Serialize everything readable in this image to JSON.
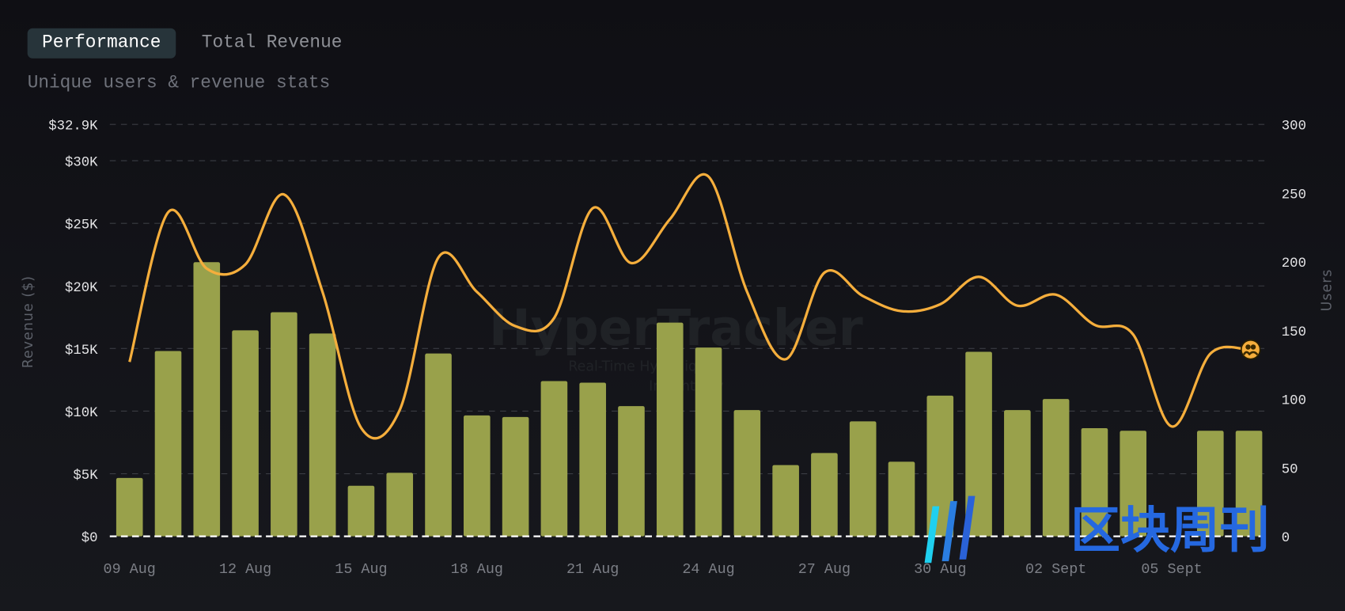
{
  "tabs": [
    {
      "label": "Performance",
      "active": true
    },
    {
      "label": "Total Revenue",
      "active": false
    }
  ],
  "subtitle": "Unique users & revenue stats",
  "watermark": {
    "title": "HyperTracker",
    "line1": "Real-Time Hyperliquid",
    "line2": "Insights by"
  },
  "logo_text": "区块周刊",
  "colors": {
    "bar": "#99a14b",
    "line": "#f5ae3c",
    "grid": "#3a3c43"
  },
  "chart_data": {
    "type": "bar+line",
    "xlabel": "",
    "ylabel": "Revenue ($)",
    "y2label": "Users",
    "ylim": [
      0,
      32900
    ],
    "y2lim": [
      0,
      300
    ],
    "yticks": [
      {
        "v": 0,
        "label": "$0"
      },
      {
        "v": 5000,
        "label": "$5K"
      },
      {
        "v": 10000,
        "label": "$10K"
      },
      {
        "v": 15000,
        "label": "$15K"
      },
      {
        "v": 20000,
        "label": "$20K"
      },
      {
        "v": 25000,
        "label": "$25K"
      },
      {
        "v": 30000,
        "label": "$30K"
      },
      {
        "v": 32900,
        "label": "$32.9K"
      }
    ],
    "y2ticks": [
      {
        "v": 0,
        "label": "0"
      },
      {
        "v": 50,
        "label": "50"
      },
      {
        "v": 100,
        "label": "100"
      },
      {
        "v": 150,
        "label": "150"
      },
      {
        "v": 200,
        "label": "200"
      },
      {
        "v": 250,
        "label": "250"
      },
      {
        "v": 300,
        "label": "300"
      }
    ],
    "grid": true,
    "categories": [
      "09 Aug",
      "10 Aug",
      "11 Aug",
      "12 Aug",
      "13 Aug",
      "14 Aug",
      "15 Aug",
      "16 Aug",
      "17 Aug",
      "18 Aug",
      "19 Aug",
      "20 Aug",
      "21 Aug",
      "22 Aug",
      "23 Aug",
      "24 Aug",
      "25 Aug",
      "26 Aug",
      "27 Aug",
      "28 Aug",
      "29 Aug",
      "30 Aug",
      "31 Aug",
      "01 Sept",
      "02 Sept",
      "03 Sept",
      "04 Sept",
      "05 Sept",
      "06 Sept",
      "07 Sept"
    ],
    "xtick_labels": [
      {
        "i": 0,
        "label": "09 Aug"
      },
      {
        "i": 3,
        "label": "12 Aug"
      },
      {
        "i": 6,
        "label": "15 Aug"
      },
      {
        "i": 9,
        "label": "18 Aug"
      },
      {
        "i": 12,
        "label": "21 Aug"
      },
      {
        "i": 15,
        "label": "24 Aug"
      },
      {
        "i": 18,
        "label": "27 Aug"
      },
      {
        "i": 21,
        "label": "30 Aug"
      },
      {
        "i": 24,
        "label": "02 Sept"
      },
      {
        "i": 27,
        "label": "05 Sept"
      }
    ],
    "series": [
      {
        "type": "bar",
        "axis": "left",
        "values": [
          4660,
          14800,
          21900,
          16450,
          17900,
          16200,
          4040,
          5070,
          14600,
          9660,
          9530,
          12400,
          12270,
          10400,
          17070,
          15080,
          10080,
          5690,
          6650,
          9180,
          5960,
          11240,
          14740,
          10080,
          10970,
          8640,
          8430,
          0,
          8430,
          8430
        ]
      },
      {
        "type": "line",
        "axis": "right",
        "values": [
          127,
          236,
          195,
          198,
          249,
          178,
          79,
          92,
          203,
          178,
          153,
          159,
          239,
          199,
          231,
          262,
          178,
          129,
          192,
          175,
          164,
          169,
          189,
          168,
          176,
          154,
          147,
          80,
          133,
          136
        ]
      }
    ]
  }
}
